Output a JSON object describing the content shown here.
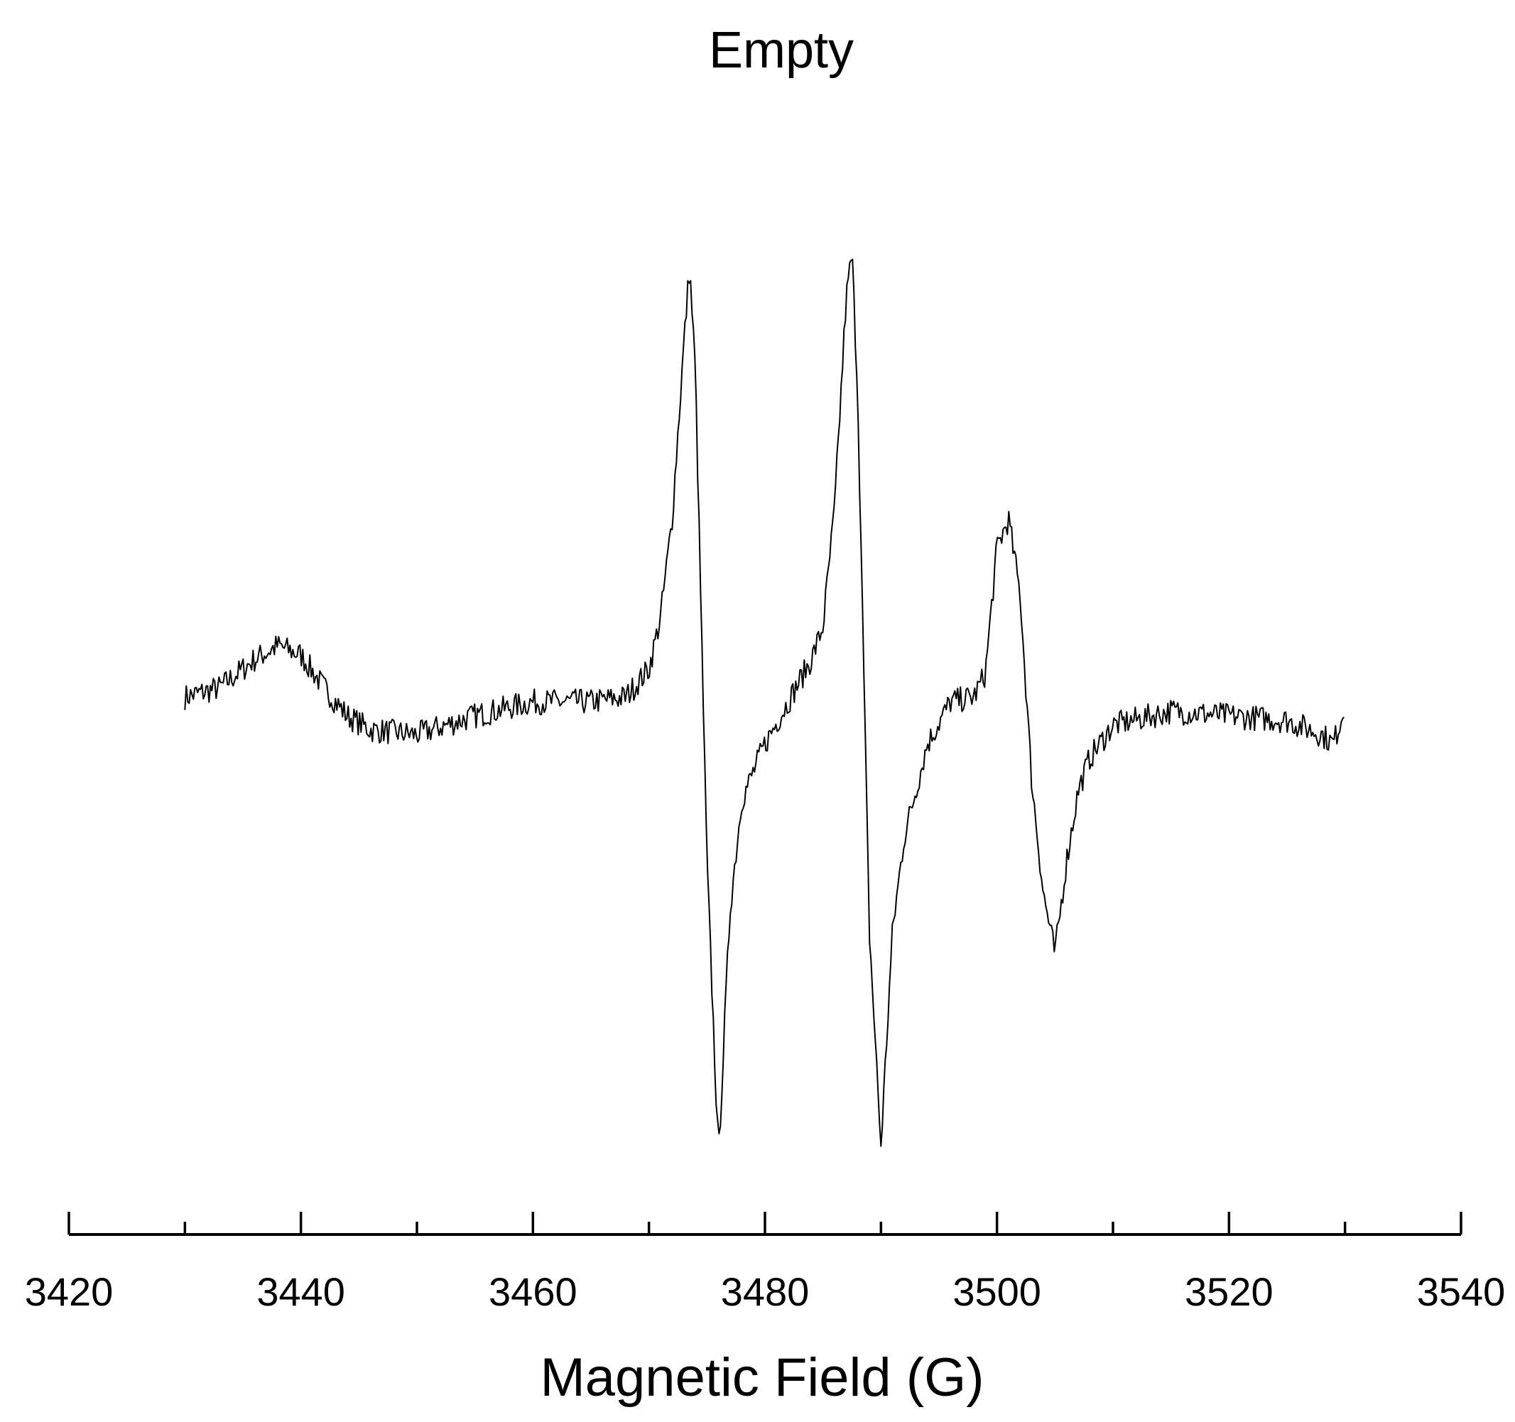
{
  "chart_data": {
    "type": "line",
    "title": "Empty",
    "xlabel": "Magnetic Field (G)",
    "ylabel": "",
    "xlim": [
      3420,
      3540
    ],
    "ylim": [
      -1.0,
      1.05
    ],
    "x_major_ticks": [
      3420,
      3440,
      3460,
      3480,
      3500,
      3520,
      3540
    ],
    "x_tick_labels": [
      "3420",
      "3440",
      "3460",
      "3480",
      "3500",
      "3520",
      "3540"
    ],
    "x_minor_ticks": [
      3430,
      3450,
      3470,
      3490,
      3510,
      3530
    ],
    "y_axis_visible": false,
    "grid": false,
    "legend": "none",
    "series": [
      {
        "line_color": "#000000",
        "x": [
          3430,
          3433,
          3436,
          3438,
          3440,
          3442,
          3444,
          3446,
          3450,
          3455,
          3460,
          3465,
          3468,
          3470,
          3471,
          3472,
          3473,
          3473.5,
          3474,
          3475,
          3476,
          3477,
          3478,
          3480,
          3482,
          3484,
          3485,
          3486,
          3487,
          3487.5,
          3488,
          3489,
          3490,
          3491,
          3492,
          3494,
          3496,
          3498,
          3499,
          3500,
          3501,
          3502,
          3503,
          3504,
          3505,
          3506,
          3507,
          3508,
          3510,
          3515,
          3520,
          3525,
          3528,
          3529,
          3530
        ],
        "y": [
          0.0,
          0.02,
          0.08,
          0.11,
          0.09,
          0.02,
          -0.04,
          -0.07,
          -0.08,
          -0.04,
          -0.01,
          -0.01,
          0.0,
          0.06,
          0.17,
          0.38,
          0.75,
          0.92,
          0.7,
          -0.35,
          -0.98,
          -0.45,
          -0.22,
          -0.1,
          -0.01,
          0.08,
          0.15,
          0.4,
          0.85,
          0.95,
          0.65,
          -0.5,
          -0.96,
          -0.5,
          -0.3,
          -0.1,
          -0.01,
          0.0,
          0.05,
          0.32,
          0.38,
          0.22,
          -0.18,
          -0.42,
          -0.55,
          -0.35,
          -0.2,
          -0.13,
          -0.06,
          -0.03,
          -0.04,
          -0.05,
          -0.08,
          -0.1,
          -0.02
        ]
      }
    ]
  }
}
